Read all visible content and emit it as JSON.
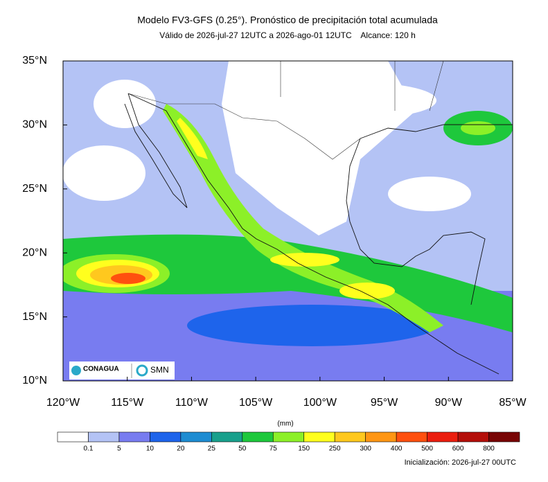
{
  "header": {
    "title": "Modelo FV3-GFS (0.25°). Pronóstico de precipitación total acumulada",
    "subtitle": "Válido de 2026-jul-27 12UTC a 2026-ago-01 12UTC    Alcance: 120 h"
  },
  "map": {
    "lat_ticks": [
      {
        "value": 35,
        "label": "35°N"
      },
      {
        "value": 30,
        "label": "30°N"
      },
      {
        "value": 25,
        "label": "25°N"
      },
      {
        "value": 20,
        "label": "20°N"
      },
      {
        "value": 15,
        "label": "15°N"
      },
      {
        "value": 10,
        "label": "10°N"
      }
    ],
    "lon_ticks": [
      {
        "value": -120,
        "label": "120°W"
      },
      {
        "value": -115,
        "label": "115°W"
      },
      {
        "value": -110,
        "label": "110°W"
      },
      {
        "value": -105,
        "label": "105°W"
      },
      {
        "value": -100,
        "label": "100°W"
      },
      {
        "value": -95,
        "label": "95°W"
      },
      {
        "value": -90,
        "label": "90°W"
      },
      {
        "value": -85,
        "label": "85°W"
      }
    ],
    "lat_range": [
      10,
      35
    ],
    "lon_range": [
      -120,
      -85
    ]
  },
  "logos": {
    "left": "CONAGUA",
    "right": "SMN"
  },
  "colorbar": {
    "unit": "(mm)",
    "labels": [
      0.1,
      5,
      10,
      20,
      25,
      50,
      75,
      150,
      250,
      300,
      400,
      500,
      600,
      800
    ],
    "colors": [
      "#ffffff",
      "#b4c3f5",
      "#787cf0",
      "#1e64eb",
      "#1e8cd2",
      "#19a08c",
      "#1ec83c",
      "#8cf028",
      "#ffff1e",
      "#ffc81e",
      "#ff9614",
      "#ff500f",
      "#eb1e0f",
      "#b40f0a",
      "#780505"
    ]
  },
  "footer": {
    "init": "Inicialización: 2026-jul-27 00UTC"
  }
}
